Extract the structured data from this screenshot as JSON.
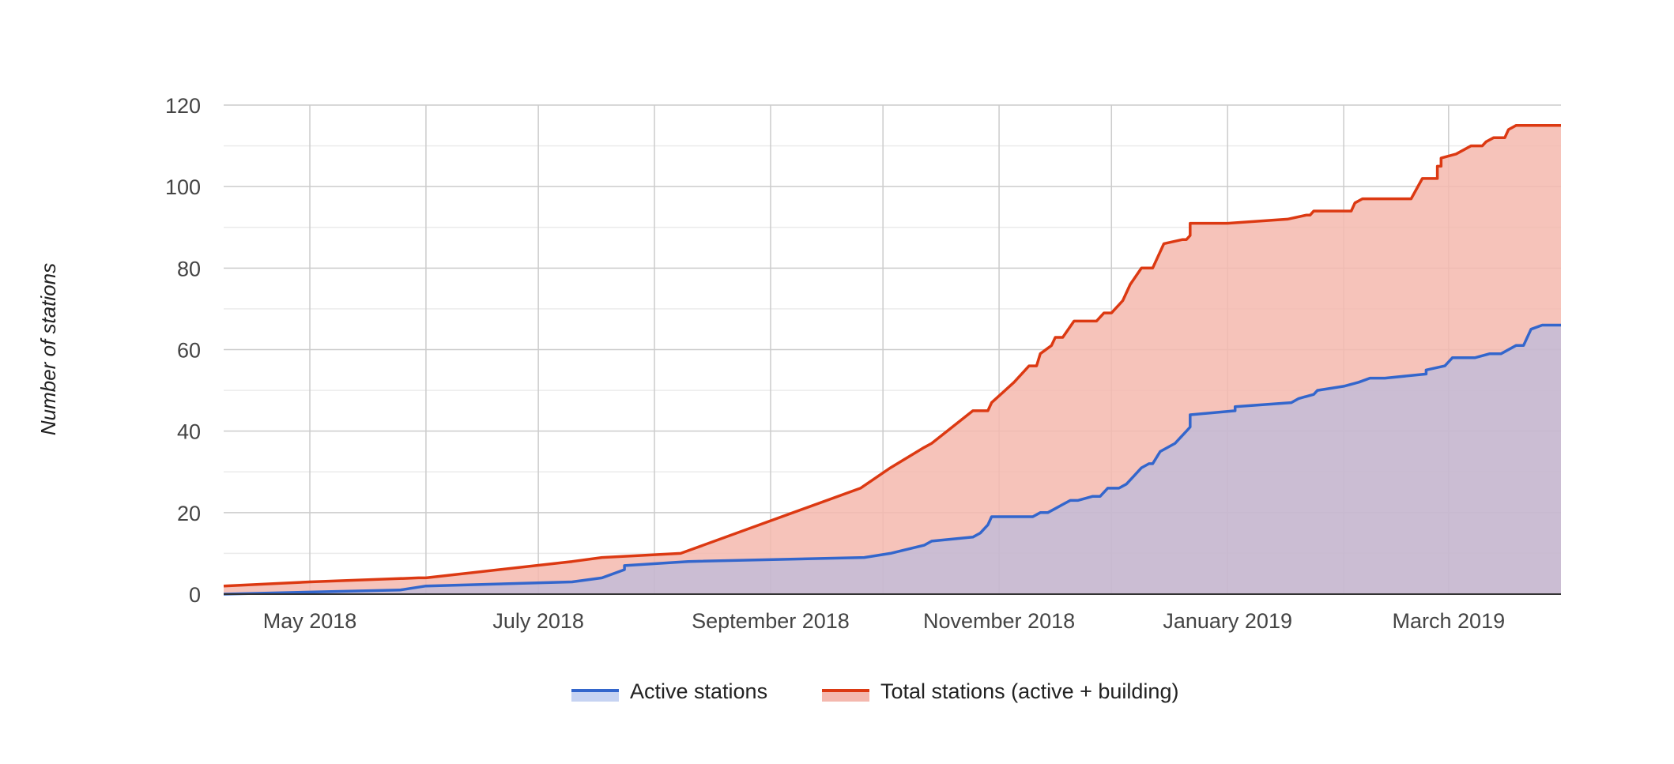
{
  "chart_data": {
    "type": "area",
    "title": "",
    "xlabel": "",
    "ylabel": "Number of stations",
    "x_axis": {
      "type": "date",
      "range": [
        "2018-04-08",
        "2019-03-31"
      ],
      "tick_dates": [
        "2018-05-01",
        "2018-06-01",
        "2018-07-01",
        "2018-08-01",
        "2018-09-01",
        "2018-10-01",
        "2018-11-01",
        "2018-12-01",
        "2019-01-01",
        "2019-02-01",
        "2019-03-01"
      ],
      "tick_labels": [
        {
          "date": "2018-05-01",
          "label": "May 2018"
        },
        {
          "date": "2018-07-01",
          "label": "July 2018"
        },
        {
          "date": "2018-09-01",
          "label": "September 2018"
        },
        {
          "date": "2018-11-01",
          "label": "November 2018"
        },
        {
          "date": "2019-01-01",
          "label": "January 2019"
        },
        {
          "date": "2019-03-01",
          "label": "March 2019"
        }
      ]
    },
    "y_axis": {
      "ylim": [
        0,
        120
      ],
      "major_ticks": [
        0,
        20,
        40,
        60,
        80,
        100,
        120
      ],
      "minor_step": 10
    },
    "grid": true,
    "legend_position": "bottom",
    "series": [
      {
        "name": "Active stations",
        "color": "#3366cc",
        "fill": "#a7b8e8",
        "values": [
          [
            "2018-04-08",
            0
          ],
          [
            "2018-05-01",
            0.5
          ],
          [
            "2018-05-25",
            1
          ],
          [
            "2018-06-01",
            2
          ],
          [
            "2018-07-10",
            3
          ],
          [
            "2018-07-18",
            4
          ],
          [
            "2018-07-24",
            6
          ],
          [
            "2018-07-24",
            7
          ],
          [
            "2018-08-10",
            8
          ],
          [
            "2018-09-26",
            9
          ],
          [
            "2018-10-03",
            10
          ],
          [
            "2018-10-12",
            12
          ],
          [
            "2018-10-14",
            13
          ],
          [
            "2018-10-25",
            14
          ],
          [
            "2018-10-27",
            15
          ],
          [
            "2018-10-29",
            17
          ],
          [
            "2018-10-30",
            19
          ],
          [
            "2018-11-10",
            19
          ],
          [
            "2018-11-12",
            20
          ],
          [
            "2018-11-14",
            20
          ],
          [
            "2018-11-16",
            21
          ],
          [
            "2018-11-18",
            22
          ],
          [
            "2018-11-20",
            23
          ],
          [
            "2018-11-22",
            23
          ],
          [
            "2018-11-26",
            24
          ],
          [
            "2018-11-28",
            24
          ],
          [
            "2018-11-30",
            26
          ],
          [
            "2018-12-03",
            26
          ],
          [
            "2018-12-05",
            27
          ],
          [
            "2018-12-07",
            29
          ],
          [
            "2018-12-09",
            31
          ],
          [
            "2018-12-11",
            32
          ],
          [
            "2018-12-12",
            32
          ],
          [
            "2018-12-14",
            35
          ],
          [
            "2018-12-18",
            37
          ],
          [
            "2018-12-20",
            39
          ],
          [
            "2018-12-21",
            40
          ],
          [
            "2018-12-22",
            41
          ],
          [
            "2018-12-22",
            44
          ],
          [
            "2019-01-03",
            45
          ],
          [
            "2019-01-03",
            46
          ],
          [
            "2019-01-18",
            47
          ],
          [
            "2019-01-20",
            48
          ],
          [
            "2019-01-24",
            49
          ],
          [
            "2019-01-25",
            50
          ],
          [
            "2019-02-01",
            51
          ],
          [
            "2019-02-05",
            52
          ],
          [
            "2019-02-08",
            53
          ],
          [
            "2019-02-12",
            53
          ],
          [
            "2019-02-23",
            54
          ],
          [
            "2019-02-23",
            55
          ],
          [
            "2019-02-28",
            56
          ],
          [
            "2019-03-01",
            57
          ],
          [
            "2019-03-02",
            58
          ],
          [
            "2019-03-08",
            58
          ],
          [
            "2019-03-12",
            59
          ],
          [
            "2019-03-15",
            59
          ],
          [
            "2019-03-19",
            61
          ],
          [
            "2019-03-21",
            61
          ],
          [
            "2019-03-23",
            65
          ],
          [
            "2019-03-26",
            66
          ],
          [
            "2019-03-31",
            66
          ]
        ]
      },
      {
        "name": "Total stations (active + building)",
        "color": "#dc3912",
        "fill": "#f4b8ae",
        "values": [
          [
            "2018-04-08",
            2
          ],
          [
            "2018-05-01",
            3
          ],
          [
            "2018-05-30",
            4
          ],
          [
            "2018-06-01",
            4
          ],
          [
            "2018-07-10",
            8
          ],
          [
            "2018-07-18",
            9
          ],
          [
            "2018-08-08",
            10
          ],
          [
            "2018-09-25",
            26
          ],
          [
            "2018-10-03",
            31
          ],
          [
            "2018-10-12",
            36
          ],
          [
            "2018-10-14",
            37
          ],
          [
            "2018-10-25",
            45
          ],
          [
            "2018-10-29",
            45
          ],
          [
            "2018-10-30",
            47
          ],
          [
            "2018-11-05",
            52
          ],
          [
            "2018-11-09",
            56
          ],
          [
            "2018-11-11",
            56
          ],
          [
            "2018-11-12",
            59
          ],
          [
            "2018-11-15",
            61
          ],
          [
            "2018-11-16",
            63
          ],
          [
            "2018-11-18",
            63
          ],
          [
            "2018-11-21",
            67
          ],
          [
            "2018-11-27",
            67
          ],
          [
            "2018-11-29",
            69
          ],
          [
            "2018-12-01",
            69
          ],
          [
            "2018-12-04",
            72
          ],
          [
            "2018-12-06",
            76
          ],
          [
            "2018-12-09",
            80
          ],
          [
            "2018-12-12",
            80
          ],
          [
            "2018-12-15",
            86
          ],
          [
            "2018-12-20",
            87
          ],
          [
            "2018-12-21",
            87
          ],
          [
            "2018-12-22",
            88
          ],
          [
            "2018-12-22",
            91
          ],
          [
            "2019-01-01",
            91
          ],
          [
            "2019-01-17",
            92
          ],
          [
            "2019-01-22",
            93
          ],
          [
            "2019-01-23",
            93
          ],
          [
            "2019-01-24",
            94
          ],
          [
            "2019-02-03",
            94
          ],
          [
            "2019-02-04",
            96
          ],
          [
            "2019-02-06",
            97
          ],
          [
            "2019-02-19",
            97
          ],
          [
            "2019-02-22",
            102
          ],
          [
            "2019-02-26",
            102
          ],
          [
            "2019-02-26",
            105
          ],
          [
            "2019-02-27",
            105
          ],
          [
            "2019-02-27",
            107
          ],
          [
            "2019-03-03",
            108
          ],
          [
            "2019-03-07",
            110
          ],
          [
            "2019-03-10",
            110
          ],
          [
            "2019-03-11",
            111
          ],
          [
            "2019-03-13",
            112
          ],
          [
            "2019-03-16",
            112
          ],
          [
            "2019-03-17",
            114
          ],
          [
            "2019-03-19",
            115
          ],
          [
            "2019-03-31",
            115
          ]
        ]
      }
    ],
    "legend": [
      {
        "label": "Active stations",
        "color": "#3366cc"
      },
      {
        "label": "Total stations (active + building)",
        "color": "#dc3912"
      }
    ]
  }
}
